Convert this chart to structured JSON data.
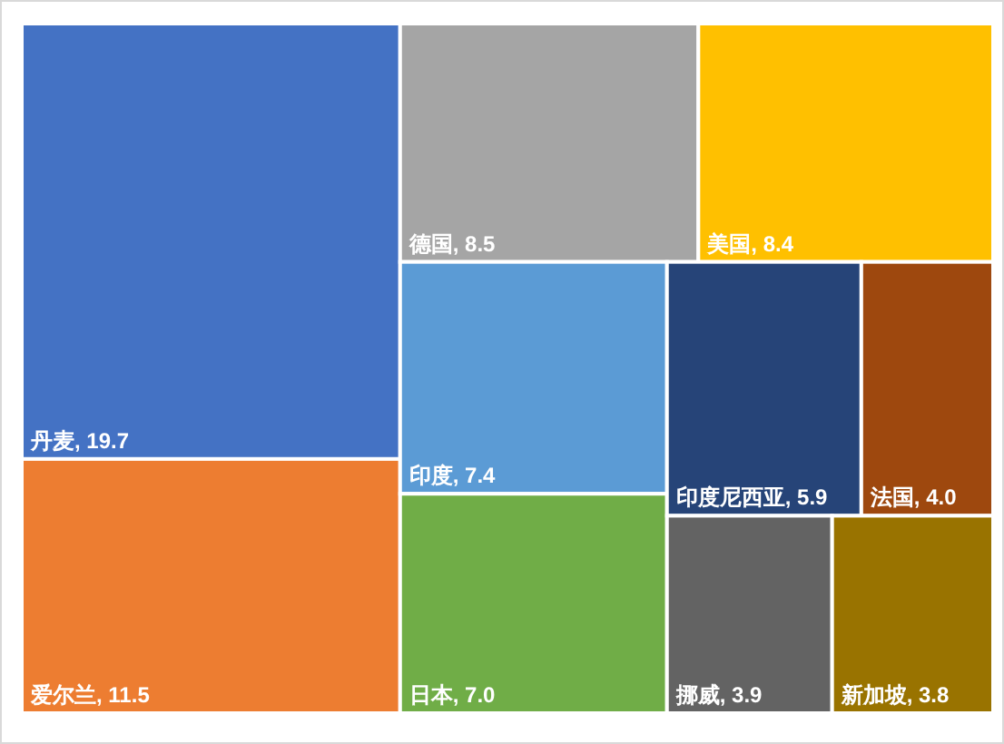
{
  "chart_data": {
    "type": "other",
    "categories": [
      "丹麦",
      "爱尔兰",
      "德国",
      "美国",
      "印度",
      "日本",
      "印度尼西亚",
      "法国",
      "挪威",
      "新加坡"
    ],
    "values": [
      19.7,
      11.5,
      8.5,
      8.4,
      7.4,
      7.0,
      5.9,
      4.0,
      3.9,
      3.8
    ],
    "value_labels": [
      ", 19.7",
      ", 11.5",
      ", 8.5",
      ", 8.4",
      ", 7.4",
      ", 7.0",
      ", 5.9",
      ", 4.0",
      ", 3.9",
      ", 3.8"
    ],
    "colors": [
      "#4472c4",
      "#ed7d31",
      "#a5a5a5",
      "#ffc000",
      "#5b9bd5",
      "#70ad47",
      "#264478",
      "#9e480e",
      "#636363",
      "#997300"
    ]
  }
}
